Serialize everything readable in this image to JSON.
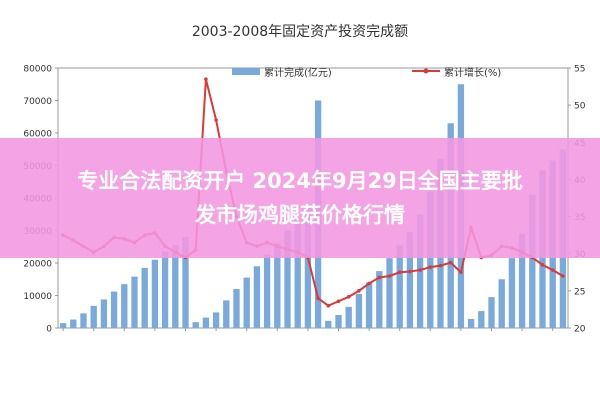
{
  "chart_data": {
    "type": "bar+line",
    "title": "2003-2008年固定资产投资完成额",
    "legend": {
      "placement": "top",
      "bar_label": "累计完成(亿元)",
      "line_label": "累计增长(%)"
    },
    "y_left": {
      "ticks": [
        "0",
        "10000",
        "20000",
        "30000",
        "40000",
        "50000",
        "60000",
        "70000",
        "80000"
      ],
      "ylim": [
        0,
        80000
      ]
    },
    "y_right": {
      "ticks": [
        "20",
        "25",
        "30",
        "35",
        "40",
        "45",
        "50",
        "55"
      ],
      "ylim": [
        20,
        55
      ]
    },
    "series": [
      {
        "name": "累计完成(亿元)",
        "kind": "bar",
        "values": [
          1500,
          2600,
          4500,
          6800,
          8800,
          11200,
          13500,
          15800,
          18500,
          21000,
          23500,
          25500,
          28000,
          1800,
          3200,
          4800,
          8500,
          12000,
          15500,
          19000,
          22500,
          26000,
          30000,
          33500,
          37500,
          70000,
          2200,
          4000,
          6500,
          10500,
          14000,
          17500,
          21500,
          25500,
          29500,
          35000,
          42000,
          52000,
          63000,
          75000,
          2800,
          5200,
          9500,
          15000,
          21500,
          29000,
          41000,
          48500,
          51500,
          55000
        ]
      },
      {
        "name": "累计增长(%)",
        "kind": "line",
        "values": [
          32.5,
          31.8,
          31.0,
          30.2,
          31.0,
          32.2,
          32.0,
          31.5,
          32.5,
          32.8,
          31.0,
          30.2,
          29.5,
          30.5,
          53.5,
          48.0,
          41.0,
          35.0,
          31.5,
          31.0,
          31.5,
          31.0,
          30.6,
          30.2,
          29.5,
          24.0,
          23.0,
          23.6,
          24.2,
          25.0,
          26.0,
          26.8,
          27.0,
          27.5,
          27.6,
          27.8,
          28.2,
          28.4,
          28.8,
          27.5,
          33.5,
          29.5,
          29.8,
          31.0,
          30.8,
          30.2,
          29.5,
          28.5,
          27.8,
          27.0
        ]
      }
    ],
    "colors": {
      "bar": "#7aa9dc",
      "line": "#d93a3a",
      "banner": "#f296e0",
      "banner_text": "#ffffff"
    }
  },
  "banner": {
    "line1": "专业合法配资开户 2024年9月29日全国主要批",
    "line2": "发市场鸡腿菇价格行情"
  }
}
